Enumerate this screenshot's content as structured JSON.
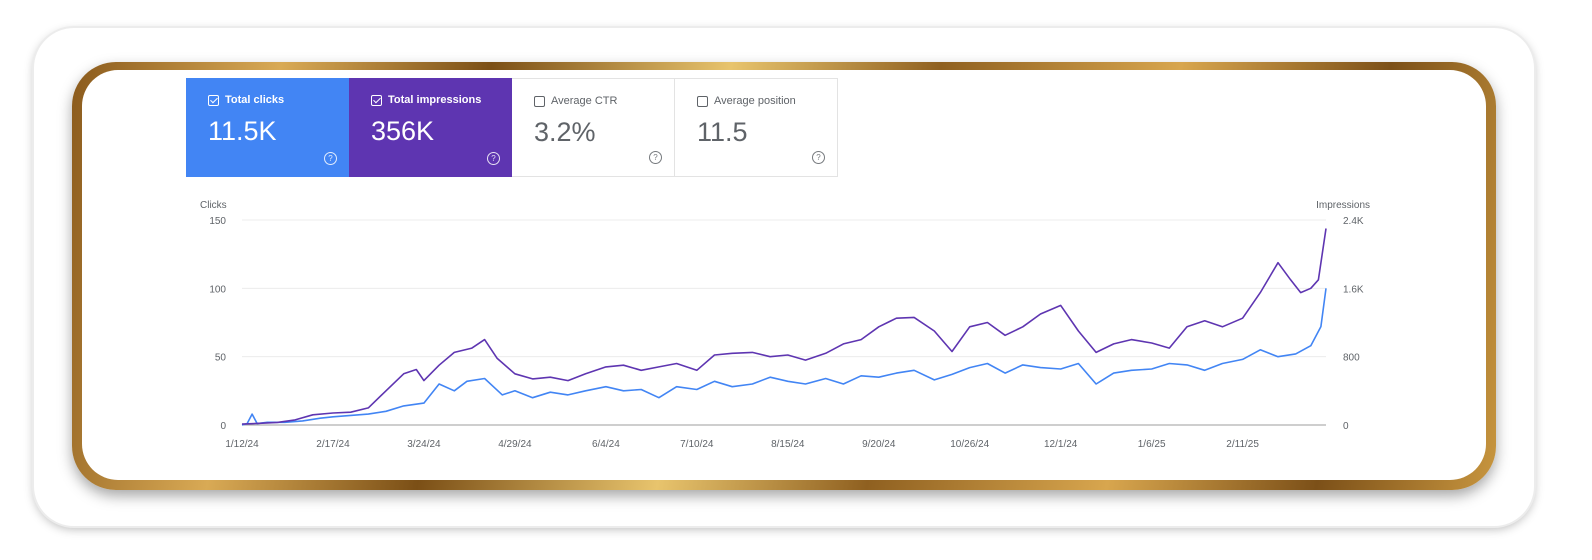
{
  "metrics": [
    {
      "label": "Total clicks",
      "value": "11.5K",
      "checked": true
    },
    {
      "label": "Total impressions",
      "value": "356K",
      "checked": true
    },
    {
      "label": "Average CTR",
      "value": "3.2%",
      "checked": false
    },
    {
      "label": "Average position",
      "value": "11.5",
      "checked": false
    }
  ],
  "colors": {
    "clicks": "#4285f4",
    "impressions": "#5e35b1"
  },
  "chart_data": {
    "type": "line",
    "xlabel": "",
    "left_axis_title": "Clicks",
    "right_axis_title": "Impressions",
    "x_range": [
      "1/12/24",
      "3/16/25"
    ],
    "x_ticks": [
      "1/12/24",
      "2/17/24",
      "3/24/24",
      "4/29/24",
      "6/4/24",
      "7/10/24",
      "8/15/24",
      "9/20/24",
      "10/26/24",
      "12/1/24",
      "1/6/25",
      "2/11/25"
    ],
    "y_left": {
      "range": [
        0,
        150
      ],
      "ticks": [
        "0",
        "50",
        "100",
        "150"
      ]
    },
    "y_right": {
      "range": [
        0,
        2400
      ],
      "ticks": [
        "0",
        "800",
        "1.6K",
        "2.4K"
      ]
    },
    "grid": true,
    "series": [
      {
        "name": "Clicks",
        "axis": "left",
        "color": "#4285f4",
        "points": [
          [
            "1/12/24",
            0
          ],
          [
            "1/14/24",
            1
          ],
          [
            "1/16/24",
            8
          ],
          [
            "1/18/24",
            1
          ],
          [
            "1/22/24",
            2
          ],
          [
            "1/29/24",
            2
          ],
          [
            "2/5/24",
            3
          ],
          [
            "2/12/24",
            5
          ],
          [
            "2/17/24",
            6
          ],
          [
            "2/24/24",
            7
          ],
          [
            "3/2/24",
            8
          ],
          [
            "3/9/24",
            10
          ],
          [
            "3/16/24",
            14
          ],
          [
            "3/24/24",
            16
          ],
          [
            "3/30/24",
            30
          ],
          [
            "4/5/24",
            25
          ],
          [
            "4/10/24",
            32
          ],
          [
            "4/17/24",
            34
          ],
          [
            "4/24/24",
            22
          ],
          [
            "4/29/24",
            25
          ],
          [
            "5/6/24",
            20
          ],
          [
            "5/13/24",
            24
          ],
          [
            "5/20/24",
            22
          ],
          [
            "5/27/24",
            25
          ],
          [
            "6/4/24",
            28
          ],
          [
            "6/11/24",
            25
          ],
          [
            "6/18/24",
            26
          ],
          [
            "6/25/24",
            20
          ],
          [
            "7/2/24",
            28
          ],
          [
            "7/10/24",
            26
          ],
          [
            "7/17/24",
            32
          ],
          [
            "7/24/24",
            28
          ],
          [
            "8/1/24",
            30
          ],
          [
            "8/8/24",
            35
          ],
          [
            "8/15/24",
            32
          ],
          [
            "8/22/24",
            30
          ],
          [
            "8/30/24",
            34
          ],
          [
            "9/6/24",
            30
          ],
          [
            "9/13/24",
            36
          ],
          [
            "9/20/24",
            35
          ],
          [
            "9/27/24",
            38
          ],
          [
            "10/4/24",
            40
          ],
          [
            "10/12/24",
            33
          ],
          [
            "10/19/24",
            37
          ],
          [
            "10/26/24",
            42
          ],
          [
            "11/2/24",
            45
          ],
          [
            "11/9/24",
            38
          ],
          [
            "11/16/24",
            44
          ],
          [
            "11/23/24",
            42
          ],
          [
            "12/1/24",
            41
          ],
          [
            "12/8/24",
            45
          ],
          [
            "12/15/24",
            30
          ],
          [
            "12/22/24",
            38
          ],
          [
            "12/29/24",
            40
          ],
          [
            "1/6/25",
            41
          ],
          [
            "1/13/25",
            45
          ],
          [
            "1/20/25",
            44
          ],
          [
            "1/27/25",
            40
          ],
          [
            "2/3/25",
            45
          ],
          [
            "2/11/25",
            48
          ],
          [
            "2/18/25",
            55
          ],
          [
            "2/25/25",
            50
          ],
          [
            "3/4/25",
            52
          ],
          [
            "3/10/25",
            58
          ],
          [
            "3/14/25",
            72
          ],
          [
            "3/16/25",
            100
          ]
        ]
      },
      {
        "name": "Impressions",
        "axis": "right",
        "color": "#5e35b1",
        "points": [
          [
            "1/12/24",
            10
          ],
          [
            "1/19/24",
            20
          ],
          [
            "1/26/24",
            30
          ],
          [
            "2/2/24",
            60
          ],
          [
            "2/9/24",
            120
          ],
          [
            "2/17/24",
            140
          ],
          [
            "2/24/24",
            150
          ],
          [
            "3/2/24",
            200
          ],
          [
            "3/9/24",
            400
          ],
          [
            "3/16/24",
            600
          ],
          [
            "3/21/24",
            650
          ],
          [
            "3/24/24",
            520
          ],
          [
            "3/30/24",
            700
          ],
          [
            "4/5/24",
            850
          ],
          [
            "4/12/24",
            900
          ],
          [
            "4/17/24",
            1000
          ],
          [
            "4/22/24",
            780
          ],
          [
            "4/29/24",
            600
          ],
          [
            "5/6/24",
            540
          ],
          [
            "5/13/24",
            560
          ],
          [
            "5/20/24",
            520
          ],
          [
            "5/27/24",
            600
          ],
          [
            "6/4/24",
            680
          ],
          [
            "6/11/24",
            700
          ],
          [
            "6/18/24",
            640
          ],
          [
            "6/25/24",
            680
          ],
          [
            "7/2/24",
            720
          ],
          [
            "7/10/24",
            640
          ],
          [
            "7/17/24",
            820
          ],
          [
            "7/24/24",
            840
          ],
          [
            "8/1/24",
            850
          ],
          [
            "8/8/24",
            800
          ],
          [
            "8/15/24",
            820
          ],
          [
            "8/22/24",
            760
          ],
          [
            "8/30/24",
            840
          ],
          [
            "9/6/24",
            950
          ],
          [
            "9/13/24",
            1000
          ],
          [
            "9/20/24",
            1150
          ],
          [
            "9/27/24",
            1250
          ],
          [
            "10/4/24",
            1260
          ],
          [
            "10/12/24",
            1100
          ],
          [
            "10/19/24",
            860
          ],
          [
            "10/26/24",
            1150
          ],
          [
            "11/2/24",
            1200
          ],
          [
            "11/9/24",
            1050
          ],
          [
            "11/16/24",
            1150
          ],
          [
            "11/23/24",
            1300
          ],
          [
            "12/1/24",
            1400
          ],
          [
            "12/8/24",
            1100
          ],
          [
            "12/15/24",
            850
          ],
          [
            "12/22/24",
            950
          ],
          [
            "12/29/24",
            1000
          ],
          [
            "1/6/25",
            960
          ],
          [
            "1/13/25",
            900
          ],
          [
            "1/20/25",
            1150
          ],
          [
            "1/27/25",
            1220
          ],
          [
            "2/3/25",
            1150
          ],
          [
            "2/11/25",
            1250
          ],
          [
            "2/18/25",
            1550
          ],
          [
            "2/25/25",
            1900
          ],
          [
            "3/2/25",
            1700
          ],
          [
            "3/6/25",
            1550
          ],
          [
            "3/10/25",
            1600
          ],
          [
            "3/13/25",
            1700
          ],
          [
            "3/16/25",
            2300
          ]
        ]
      }
    ]
  }
}
